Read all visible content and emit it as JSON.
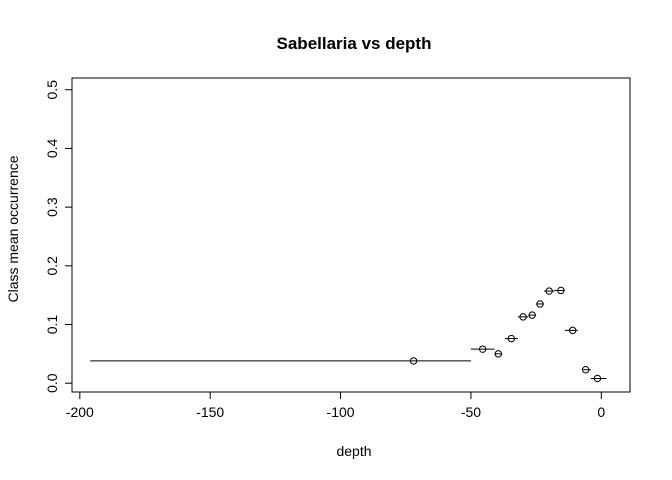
{
  "chart_data": {
    "type": "scatter",
    "title": "Sabellaria vs depth",
    "xlabel": "depth",
    "ylabel": "Class mean occurrence",
    "xlim": [
      -203,
      11
    ],
    "ylim": [
      -0.015,
      0.52
    ],
    "x_ticks": [
      -200,
      -150,
      -100,
      -50,
      0
    ],
    "x_tick_labels": [
      "-200",
      "-150",
      "-100",
      "-50",
      "0"
    ],
    "y_ticks": [
      0.0,
      0.1,
      0.2,
      0.3,
      0.4,
      0.5
    ],
    "y_tick_labels": [
      "0.0",
      "0.1",
      "0.2",
      "0.3",
      "0.4",
      "0.5"
    ],
    "grid": false,
    "legend": "none",
    "marker": "open-circle",
    "color": "#000000",
    "points": [
      {
        "x": -72,
        "y": 0.038,
        "x_min": -196,
        "x_max": -50
      },
      {
        "x": -45.5,
        "y": 0.058,
        "x_min": -50,
        "x_max": -41
      },
      {
        "x": -39.5,
        "y": 0.05,
        "x_min": -41,
        "x_max": -38
      },
      {
        "x": -34.5,
        "y": 0.076,
        "x_min": -37,
        "x_max": -32
      },
      {
        "x": -30,
        "y": 0.113,
        "x_min": -32,
        "x_max": -28
      },
      {
        "x": -26.5,
        "y": 0.116,
        "x_min": -28,
        "x_max": -25
      },
      {
        "x": -23.5,
        "y": 0.135,
        "x_min": -25,
        "x_max": -22
      },
      {
        "x": -20,
        "y": 0.157,
        "x_min": -22,
        "x_max": -18
      },
      {
        "x": -15.5,
        "y": 0.158,
        "x_min": -18,
        "x_max": -14
      },
      {
        "x": -11,
        "y": 0.09,
        "x_min": -14,
        "x_max": -9
      },
      {
        "x": -6,
        "y": 0.023,
        "x_min": -7,
        "x_max": -4
      },
      {
        "x": -1.5,
        "y": 0.008,
        "x_min": -4,
        "x_max": 2
      }
    ]
  }
}
